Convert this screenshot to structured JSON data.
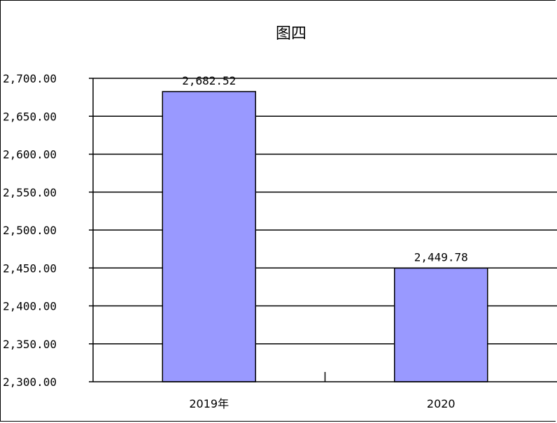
{
  "chart_data": {
    "type": "bar",
    "title": "图四",
    "xlabel": "",
    "ylabel": "",
    "categories": [
      "2019年",
      "2020"
    ],
    "values": [
      2682.52,
      2449.78
    ],
    "data_labels": [
      "2,682.52",
      "2,449.78"
    ],
    "ylim": [
      2300,
      2700
    ],
    "yticks": [
      2300,
      2350,
      2400,
      2450,
      2500,
      2550,
      2600,
      2650,
      2700
    ],
    "ytick_labels": [
      "2,300.00",
      "2,350.00",
      "2,400.00",
      "2,450.00",
      "2,500.00",
      "2,550.00",
      "2,600.00",
      "2,650.00",
      "2,700.00"
    ],
    "grid": true,
    "legend": "none",
    "colors": {
      "bar": "#9999ff",
      "edge": "#000000",
      "grid": "#000000"
    }
  }
}
